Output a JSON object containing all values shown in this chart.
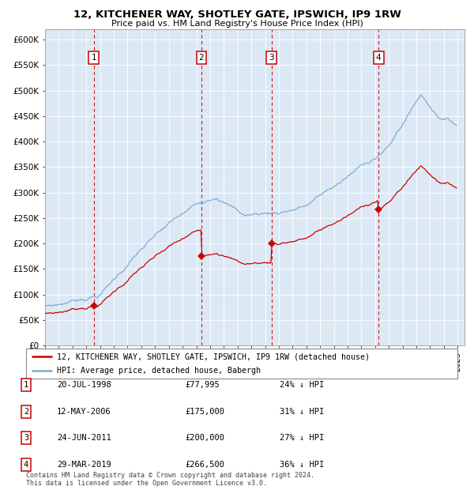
{
  "title1": "12, KITCHENER WAY, SHOTLEY GATE, IPSWICH, IP9 1RW",
  "title2": "Price paid vs. HM Land Registry's House Price Index (HPI)",
  "legend_line1": "12, KITCHENER WAY, SHOTLEY GATE, IPSWICH, IP9 1RW (detached house)",
  "legend_line2": "HPI: Average price, detached house, Babergh",
  "footer1": "Contains HM Land Registry data © Crown copyright and database right 2024.",
  "footer2": "This data is licensed under the Open Government Licence v3.0.",
  "sale_prices": [
    77995,
    175000,
    200000,
    266500
  ],
  "sale_pct": [
    "24% ↓ HPI",
    "31% ↓ HPI",
    "27% ↓ HPI",
    "36% ↓ HPI"
  ],
  "sale_dates_str": [
    "20-JUL-1998",
    "12-MAY-2006",
    "24-JUN-2011",
    "29-MAR-2019"
  ],
  "sale_prices_str": [
    "£77,995",
    "£175,000",
    "£200,000",
    "£266,500"
  ],
  "sale_date_floats": [
    1998.542,
    2006.375,
    2011.458,
    2019.25
  ],
  "hpi_color": "#7aadd4",
  "price_color": "#cc0000",
  "bg_color": "#dce9f5",
  "ylim": [
    0,
    620000
  ],
  "yticks": [
    0,
    50000,
    100000,
    150000,
    200000,
    250000,
    300000,
    350000,
    400000,
    450000,
    500000,
    550000,
    600000
  ],
  "xlim_start": 1995.0,
  "xlim_end": 2025.5
}
